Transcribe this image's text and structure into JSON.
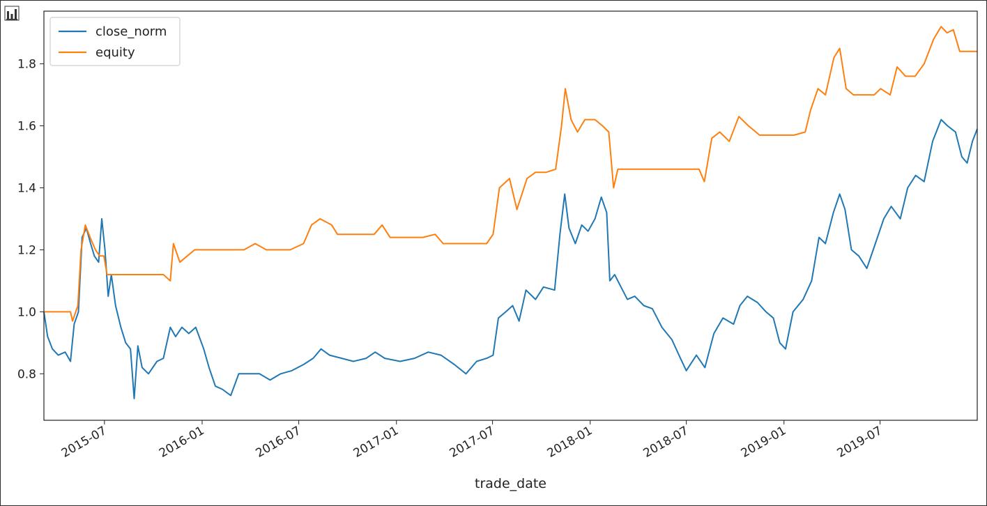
{
  "toolbar": {
    "icon": "bar-chart-icon"
  },
  "chart_data": {
    "type": "line",
    "title": "",
    "xlabel": "trade_date",
    "ylabel": "",
    "x_range": [
      "2015-03-09",
      "2019-12-31"
    ],
    "ylim": [
      0.65,
      1.97
    ],
    "yticks": [
      0.8,
      1.0,
      1.2,
      1.4,
      1.6,
      1.8
    ],
    "ytick_labels": [
      "0.8",
      "1.0",
      "1.2",
      "1.4",
      "1.6",
      "1.8"
    ],
    "xticks": [
      "2015-07-01",
      "2016-01-01",
      "2016-07-01",
      "2017-01-01",
      "2017-07-01",
      "2018-01-01",
      "2018-07-01",
      "2019-01-01",
      "2019-07-01"
    ],
    "xtick_labels": [
      "2015-07",
      "2016-01",
      "2016-07",
      "2017-01",
      "2017-07",
      "2018-01",
      "2018-07",
      "2019-01",
      "2019-07"
    ],
    "grid": false,
    "legend_position": "top-left",
    "series": [
      {
        "name": "close_norm",
        "color": "#1f77b4",
        "points": [
          [
            "2015-03-09",
            1.0
          ],
          [
            "2015-03-16",
            0.92
          ],
          [
            "2015-03-25",
            0.88
          ],
          [
            "2015-04-05",
            0.86
          ],
          [
            "2015-04-18",
            0.87
          ],
          [
            "2015-04-28",
            0.84
          ],
          [
            "2015-05-05",
            0.96
          ],
          [
            "2015-05-13",
            1.0
          ],
          [
            "2015-05-20",
            1.24
          ],
          [
            "2015-05-28",
            1.27
          ],
          [
            "2015-06-05",
            1.22
          ],
          [
            "2015-06-12",
            1.18
          ],
          [
            "2015-06-20",
            1.16
          ],
          [
            "2015-06-26",
            1.3
          ],
          [
            "2015-07-02",
            1.2
          ],
          [
            "2015-07-08",
            1.05
          ],
          [
            "2015-07-14",
            1.12
          ],
          [
            "2015-07-22",
            1.02
          ],
          [
            "2015-08-01",
            0.95
          ],
          [
            "2015-08-10",
            0.9
          ],
          [
            "2015-08-19",
            0.88
          ],
          [
            "2015-08-26",
            0.72
          ],
          [
            "2015-09-02",
            0.89
          ],
          [
            "2015-09-10",
            0.82
          ],
          [
            "2015-09-22",
            0.8
          ],
          [
            "2015-10-08",
            0.84
          ],
          [
            "2015-10-20",
            0.85
          ],
          [
            "2015-11-02",
            0.95
          ],
          [
            "2015-11-12",
            0.92
          ],
          [
            "2015-11-24",
            0.95
          ],
          [
            "2015-12-07",
            0.93
          ],
          [
            "2015-12-20",
            0.95
          ],
          [
            "2016-01-04",
            0.88
          ],
          [
            "2016-01-14",
            0.82
          ],
          [
            "2016-01-26",
            0.76
          ],
          [
            "2016-02-08",
            0.75
          ],
          [
            "2016-02-24",
            0.73
          ],
          [
            "2016-03-10",
            0.8
          ],
          [
            "2016-03-30",
            0.8
          ],
          [
            "2016-04-18",
            0.8
          ],
          [
            "2016-05-08",
            0.78
          ],
          [
            "2016-05-28",
            0.8
          ],
          [
            "2016-06-18",
            0.81
          ],
          [
            "2016-07-10",
            0.83
          ],
          [
            "2016-07-28",
            0.85
          ],
          [
            "2016-08-12",
            0.88
          ],
          [
            "2016-08-28",
            0.86
          ],
          [
            "2016-09-20",
            0.85
          ],
          [
            "2016-10-12",
            0.84
          ],
          [
            "2016-11-05",
            0.85
          ],
          [
            "2016-11-22",
            0.87
          ],
          [
            "2016-12-10",
            0.85
          ],
          [
            "2017-01-08",
            0.84
          ],
          [
            "2017-02-04",
            0.85
          ],
          [
            "2017-03-02",
            0.87
          ],
          [
            "2017-03-26",
            0.86
          ],
          [
            "2017-04-20",
            0.83
          ],
          [
            "2017-05-12",
            0.8
          ],
          [
            "2017-06-01",
            0.84
          ],
          [
            "2017-06-20",
            0.85
          ],
          [
            "2017-07-02",
            0.86
          ],
          [
            "2017-07-12",
            0.98
          ],
          [
            "2017-07-26",
            1.0
          ],
          [
            "2017-08-08",
            1.02
          ],
          [
            "2017-08-20",
            0.97
          ],
          [
            "2017-09-02",
            1.07
          ],
          [
            "2017-09-20",
            1.04
          ],
          [
            "2017-10-05",
            1.08
          ],
          [
            "2017-10-26",
            1.07
          ],
          [
            "2017-11-05",
            1.25
          ],
          [
            "2017-11-14",
            1.38
          ],
          [
            "2017-11-22",
            1.27
          ],
          [
            "2017-12-04",
            1.22
          ],
          [
            "2017-12-16",
            1.28
          ],
          [
            "2017-12-28",
            1.26
          ],
          [
            "2018-01-10",
            1.3
          ],
          [
            "2018-01-22",
            1.37
          ],
          [
            "2018-02-01",
            1.32
          ],
          [
            "2018-02-07",
            1.1
          ],
          [
            "2018-02-16",
            1.12
          ],
          [
            "2018-02-28",
            1.08
          ],
          [
            "2018-03-12",
            1.04
          ],
          [
            "2018-03-26",
            1.05
          ],
          [
            "2018-04-12",
            1.02
          ],
          [
            "2018-04-28",
            1.01
          ],
          [
            "2018-05-16",
            0.95
          ],
          [
            "2018-06-04",
            0.91
          ],
          [
            "2018-06-20",
            0.85
          ],
          [
            "2018-07-01",
            0.81
          ],
          [
            "2018-07-20",
            0.86
          ],
          [
            "2018-08-05",
            0.82
          ],
          [
            "2018-08-22",
            0.93
          ],
          [
            "2018-09-08",
            0.98
          ],
          [
            "2018-09-28",
            0.96
          ],
          [
            "2018-10-10",
            1.02
          ],
          [
            "2018-10-24",
            1.05
          ],
          [
            "2018-11-12",
            1.03
          ],
          [
            "2018-11-28",
            1.0
          ],
          [
            "2018-12-12",
            0.98
          ],
          [
            "2018-12-24",
            0.9
          ],
          [
            "2019-01-04",
            0.88
          ],
          [
            "2019-01-18",
            1.0
          ],
          [
            "2019-02-06",
            1.04
          ],
          [
            "2019-02-22",
            1.1
          ],
          [
            "2019-03-08",
            1.24
          ],
          [
            "2019-03-20",
            1.22
          ],
          [
            "2019-04-04",
            1.32
          ],
          [
            "2019-04-16",
            1.38
          ],
          [
            "2019-04-26",
            1.33
          ],
          [
            "2019-05-08",
            1.2
          ],
          [
            "2019-05-22",
            1.18
          ],
          [
            "2019-06-06",
            1.14
          ],
          [
            "2019-06-22",
            1.22
          ],
          [
            "2019-07-08",
            1.3
          ],
          [
            "2019-07-22",
            1.34
          ],
          [
            "2019-08-08",
            1.3
          ],
          [
            "2019-08-22",
            1.4
          ],
          [
            "2019-09-06",
            1.44
          ],
          [
            "2019-09-22",
            1.42
          ],
          [
            "2019-10-08",
            1.55
          ],
          [
            "2019-10-24",
            1.62
          ],
          [
            "2019-11-05",
            1.6
          ],
          [
            "2019-11-20",
            1.58
          ],
          [
            "2019-12-02",
            1.5
          ],
          [
            "2019-12-12",
            1.48
          ],
          [
            "2019-12-22",
            1.55
          ],
          [
            "2019-12-31",
            1.59
          ]
        ]
      },
      {
        "name": "equity",
        "color": "#ff7f0e",
        "points": [
          [
            "2015-03-09",
            1.0
          ],
          [
            "2015-04-28",
            1.0
          ],
          [
            "2015-05-02",
            0.97
          ],
          [
            "2015-05-12",
            1.02
          ],
          [
            "2015-05-18",
            1.2
          ],
          [
            "2015-05-26",
            1.28
          ],
          [
            "2015-06-04",
            1.24
          ],
          [
            "2015-06-14",
            1.2
          ],
          [
            "2015-06-22",
            1.18
          ],
          [
            "2015-06-30",
            1.18
          ],
          [
            "2015-07-06",
            1.12
          ],
          [
            "2015-08-08",
            1.12
          ],
          [
            "2015-10-20",
            1.12
          ],
          [
            "2015-11-02",
            1.1
          ],
          [
            "2015-11-08",
            1.22
          ],
          [
            "2015-11-20",
            1.16
          ],
          [
            "2015-12-04",
            1.18
          ],
          [
            "2015-12-18",
            1.2
          ],
          [
            "2016-03-20",
            1.2
          ],
          [
            "2016-04-10",
            1.22
          ],
          [
            "2016-05-01",
            1.2
          ],
          [
            "2016-06-15",
            1.2
          ],
          [
            "2016-07-10",
            1.22
          ],
          [
            "2016-07-25",
            1.28
          ],
          [
            "2016-08-10",
            1.3
          ],
          [
            "2016-09-01",
            1.28
          ],
          [
            "2016-09-12",
            1.25
          ],
          [
            "2016-11-20",
            1.25
          ],
          [
            "2016-12-05",
            1.28
          ],
          [
            "2016-12-20",
            1.24
          ],
          [
            "2017-02-20",
            1.24
          ],
          [
            "2017-03-15",
            1.25
          ],
          [
            "2017-03-30",
            1.22
          ],
          [
            "2017-06-20",
            1.22
          ],
          [
            "2017-07-02",
            1.25
          ],
          [
            "2017-07-14",
            1.4
          ],
          [
            "2017-08-02",
            1.43
          ],
          [
            "2017-08-16",
            1.33
          ],
          [
            "2017-09-04",
            1.43
          ],
          [
            "2017-09-20",
            1.45
          ],
          [
            "2017-10-10",
            1.45
          ],
          [
            "2017-10-28",
            1.46
          ],
          [
            "2017-11-08",
            1.6
          ],
          [
            "2017-11-15",
            1.72
          ],
          [
            "2017-11-26",
            1.62
          ],
          [
            "2017-12-08",
            1.58
          ],
          [
            "2017-12-22",
            1.62
          ],
          [
            "2018-01-10",
            1.62
          ],
          [
            "2018-01-24",
            1.6
          ],
          [
            "2018-02-05",
            1.58
          ],
          [
            "2018-02-14",
            1.4
          ],
          [
            "2018-02-22",
            1.46
          ],
          [
            "2018-07-25",
            1.46
          ],
          [
            "2018-08-04",
            1.42
          ],
          [
            "2018-08-18",
            1.56
          ],
          [
            "2018-09-02",
            1.58
          ],
          [
            "2018-09-20",
            1.55
          ],
          [
            "2018-10-08",
            1.63
          ],
          [
            "2018-10-26",
            1.6
          ],
          [
            "2018-11-16",
            1.57
          ],
          [
            "2019-01-20",
            1.57
          ],
          [
            "2019-02-10",
            1.58
          ],
          [
            "2019-02-20",
            1.65
          ],
          [
            "2019-03-06",
            1.72
          ],
          [
            "2019-03-20",
            1.7
          ],
          [
            "2019-04-05",
            1.82
          ],
          [
            "2019-04-16",
            1.85
          ],
          [
            "2019-04-28",
            1.72
          ],
          [
            "2019-05-12",
            1.7
          ],
          [
            "2019-06-20",
            1.7
          ],
          [
            "2019-07-02",
            1.72
          ],
          [
            "2019-07-20",
            1.7
          ],
          [
            "2019-08-02",
            1.79
          ],
          [
            "2019-08-18",
            1.76
          ],
          [
            "2019-09-05",
            1.76
          ],
          [
            "2019-09-22",
            1.8
          ],
          [
            "2019-10-10",
            1.88
          ],
          [
            "2019-10-24",
            1.92
          ],
          [
            "2019-11-04",
            1.9
          ],
          [
            "2019-11-16",
            1.91
          ],
          [
            "2019-11-28",
            1.84
          ],
          [
            "2019-12-31",
            1.84
          ]
        ]
      }
    ]
  }
}
